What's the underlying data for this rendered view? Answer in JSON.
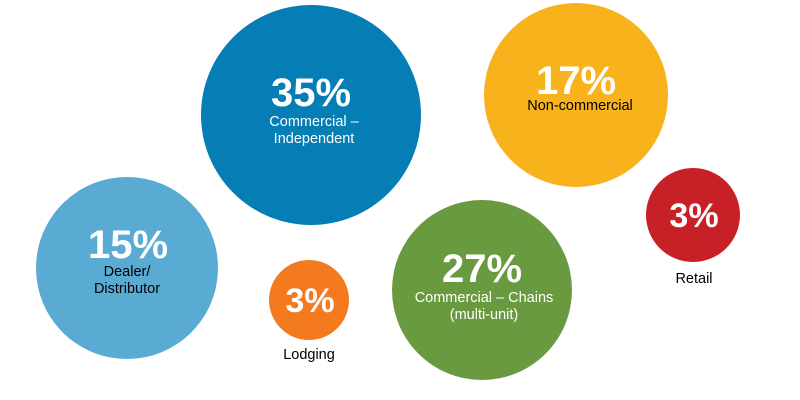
{
  "chart_data": {
    "type": "bubble",
    "categories": [
      "Commercial – Independent",
      "Non-commercial",
      "Dealer/ Distributor",
      "Lodging",
      "Commercial – Chains (multi-unit)",
      "Retail"
    ],
    "values": [
      35,
      17,
      15,
      3,
      27,
      3
    ],
    "unit": "%",
    "colors": [
      "#057db5",
      "#f8b21c",
      "#5aabd3",
      "#f47a20",
      "#6a9a3f",
      "#c72127"
    ],
    "bubbles": [
      {
        "pct": "35%",
        "label_lines": [
          "Commercial –",
          "Independent"
        ],
        "color": "#057db5"
      },
      {
        "pct": "17%",
        "label_lines": [
          "Non-commercial"
        ],
        "color": "#f8b21c"
      },
      {
        "pct": "15%",
        "label_lines": [
          "Dealer/",
          "Distributor"
        ],
        "color": "#5aabd3"
      },
      {
        "pct": "3%",
        "label_lines": [
          "Lodging"
        ],
        "color": "#f47a20"
      },
      {
        "pct": "27%",
        "label_lines": [
          "Commercial – Chains",
          "(multi-unit)"
        ],
        "color": "#6a9a3f"
      },
      {
        "pct": "3%",
        "label_lines": [
          "Retail"
        ],
        "color": "#c72127"
      }
    ]
  }
}
